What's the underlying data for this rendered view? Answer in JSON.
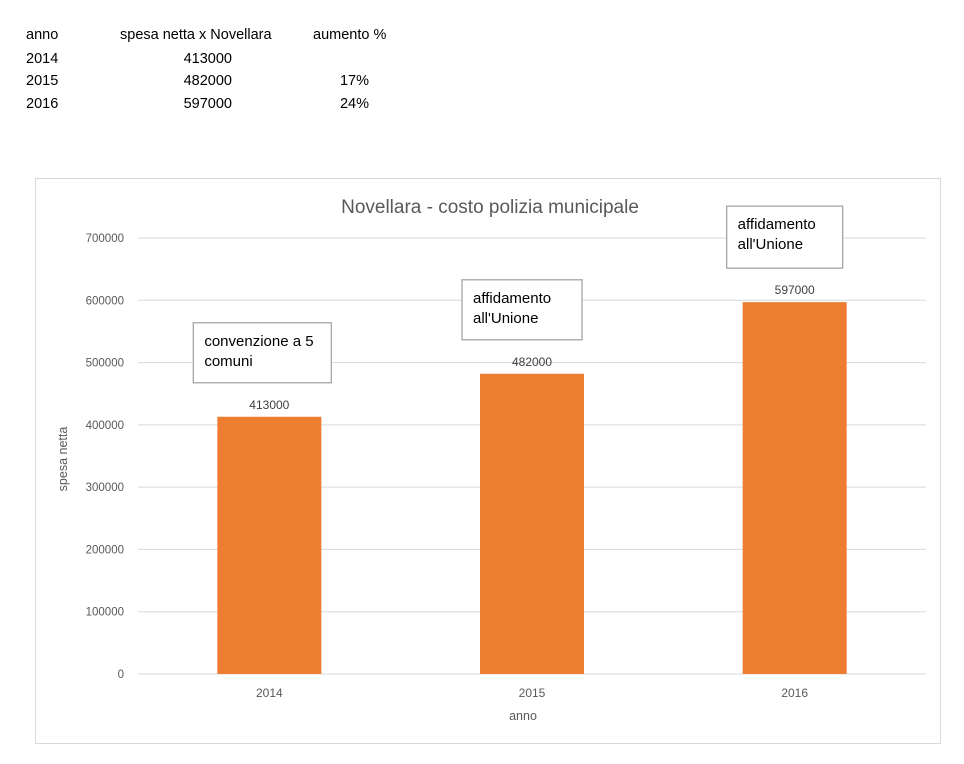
{
  "table": {
    "headers": {
      "anno": "anno",
      "spesa": "spesa netta x Novellara",
      "aumento": "aumento %"
    },
    "rows": [
      {
        "anno": "2014",
        "spesa": "413000",
        "aumento": ""
      },
      {
        "anno": "2015",
        "spesa": "482000",
        "aumento": "17%"
      },
      {
        "anno": "2016",
        "spesa": "597000",
        "aumento": "24%"
      }
    ]
  },
  "chart_data": {
    "type": "bar",
    "title": "Novellara - costo polizia municipale",
    "xlabel": "anno",
    "ylabel": "spesa netta",
    "categories": [
      "2014",
      "2015",
      "2016"
    ],
    "values": [
      413000,
      482000,
      597000
    ],
    "data_labels": [
      "413000",
      "482000",
      "597000"
    ],
    "ylim": [
      0,
      700000
    ],
    "yticks": [
      "0",
      "100000",
      "200000",
      "300000",
      "400000",
      "500000",
      "600000",
      "700000"
    ],
    "grid": true,
    "bar_color": "#ED7D31",
    "annotations": [
      {
        "category": "2014",
        "lines": [
          "convenzione a 5",
          "comuni"
        ]
      },
      {
        "category": "2015",
        "lines": [
          "affidamento",
          "all'Unione"
        ]
      },
      {
        "category": "2016",
        "lines": [
          "affidamento",
          "all'Unione"
        ]
      }
    ]
  }
}
